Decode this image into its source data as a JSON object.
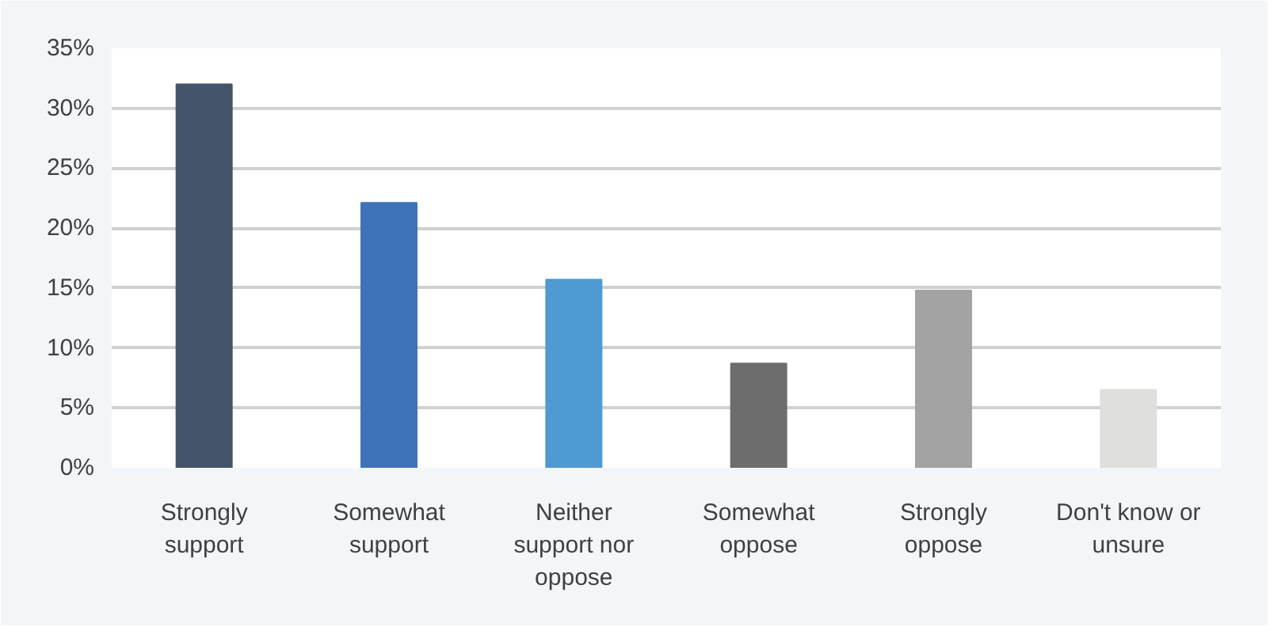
{
  "chart_data": {
    "type": "bar",
    "categories": [
      "Strongly support",
      "Somewhat support",
      "Neither support nor oppose",
      "Somewhat oppose",
      "Strongly oppose",
      "Don't know or unsure"
    ],
    "values": [
      32.0,
      22.1,
      15.7,
      8.7,
      14.8,
      6.5
    ],
    "colors": [
      "#44546a",
      "#4072b9",
      "#4f9ad3",
      "#6d6d6d",
      "#a3a3a3",
      "#dfdfdd"
    ],
    "ylim": [
      0,
      35
    ],
    "yticks": [
      {
        "value": 0,
        "label": "0%"
      },
      {
        "value": 5,
        "label": "5%"
      },
      {
        "value": 10,
        "label": "10%"
      },
      {
        "value": 15,
        "label": "15%"
      },
      {
        "value": 20,
        "label": "20%"
      },
      {
        "value": 25,
        "label": "25%"
      },
      {
        "value": 30,
        "label": "30%"
      },
      {
        "value": 35,
        "label": "35%"
      }
    ],
    "grid": "y"
  }
}
